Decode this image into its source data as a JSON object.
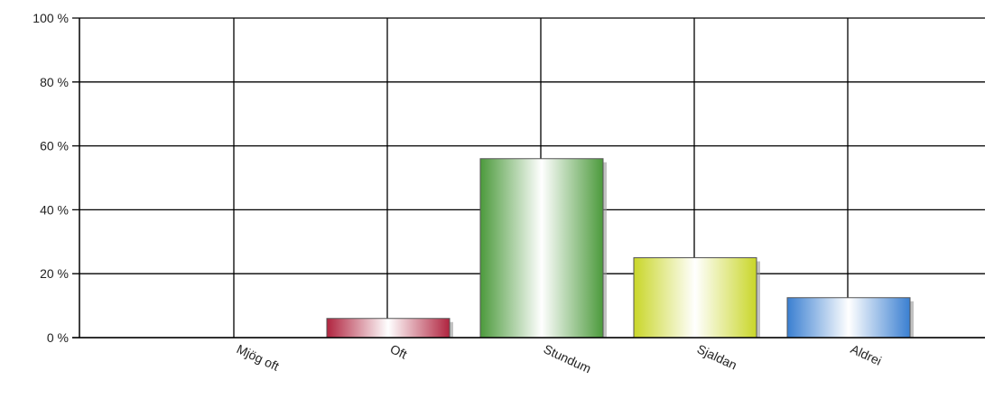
{
  "chart_data": {
    "type": "bar",
    "categories": [
      "Mjög oft",
      "Oft",
      "Stundum",
      "Sjaldan",
      "Aldrei"
    ],
    "values": [
      0,
      6,
      56,
      25,
      12.5
    ],
    "ylim": [
      0,
      100
    ],
    "yticks": [
      0,
      20,
      40,
      60,
      80,
      100
    ],
    "ytick_labels": [
      "0 %",
      "20 %",
      "40 %",
      "60 %",
      "80 %",
      "100 %"
    ],
    "grid": true,
    "colors": [
      "#c8c8c8",
      "#b0243f",
      "#4c9a3c",
      "#c9d629",
      "#3a7fd1"
    ],
    "title": "",
    "xlabel": "",
    "ylabel": ""
  }
}
